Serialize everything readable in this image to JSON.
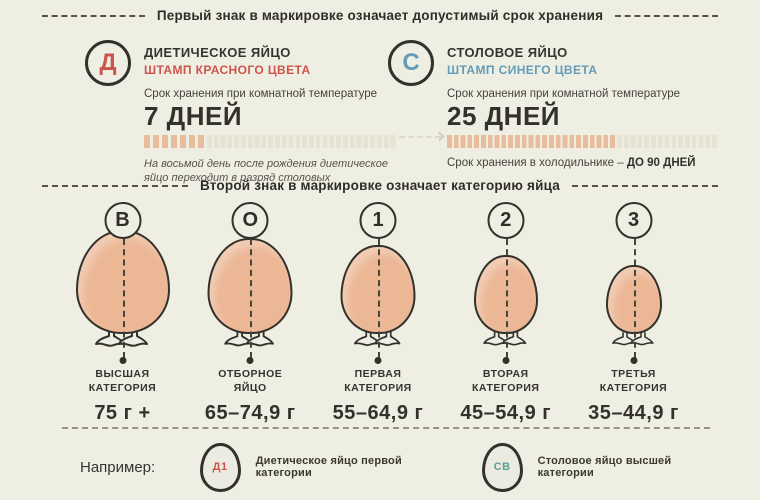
{
  "headers": {
    "first_sign": "Первый знак в маркировке означает допустимый срок хранения",
    "second_sign": "Второй знак в маркировке означает категорию яйца"
  },
  "colors": {
    "background": "#efeee3",
    "dark": "#32312b",
    "red": "#cd544b",
    "blue": "#639cb8",
    "teal": "#5d9b97",
    "egg_fill": "#ecb795",
    "bar_fill": "#e8bd9e"
  },
  "storage_types": [
    {
      "letter": "Д",
      "title": "ДИЕТИЧЕСКОЕ ЯЙЦО",
      "stamp": "ШТАМП КРАСНОГО ЦВЕТА",
      "storage_label": "Срок хранения при комнатной температуре",
      "days": "7 ДНЕЙ",
      "days_count": 7,
      "note": "На восьмой день после рождения диетическое яйцо переходит в разряд столовых"
    },
    {
      "letter": "С",
      "title": "СТОЛОВОЕ ЯЙЦО",
      "stamp": "ШТАМП СИНЕГО ЦВЕТА",
      "storage_label": "Срок хранения при комнатной температуре",
      "days": "25 ДНЕЙ",
      "days_count": 25,
      "note_prefix": "Срок хранения в холодильнике – ",
      "note_bold": "ДО 90 ДНЕЙ"
    }
  ],
  "categories": [
    {
      "badge": "В",
      "label_line1": "ВЫСШАЯ",
      "label_line2": "КАТЕГОРИЯ",
      "weight": "75 г +"
    },
    {
      "badge": "О",
      "label_line1": "ОТБОРНОЕ",
      "label_line2": "ЯЙЦО",
      "weight": "65–74,9 г"
    },
    {
      "badge": "1",
      "label_line1": "ПЕРВАЯ",
      "label_line2": "КАТЕГОРИЯ",
      "weight": "55–64,9 г"
    },
    {
      "badge": "2",
      "label_line1": "ВТОРАЯ",
      "label_line2": "КАТЕГОРИЯ",
      "weight": "45–54,9 г"
    },
    {
      "badge": "3",
      "label_line1": "ТРЕТЬЯ",
      "label_line2": "КАТЕГОРИЯ",
      "weight": "35–44,9 г"
    }
  ],
  "examples": {
    "label": "Например:",
    "items": [
      {
        "code": "Д1",
        "description": "Диетическое яйцо первой категории"
      },
      {
        "code": "СВ",
        "description": "Столовое яйцо высшей категории"
      }
    ]
  }
}
